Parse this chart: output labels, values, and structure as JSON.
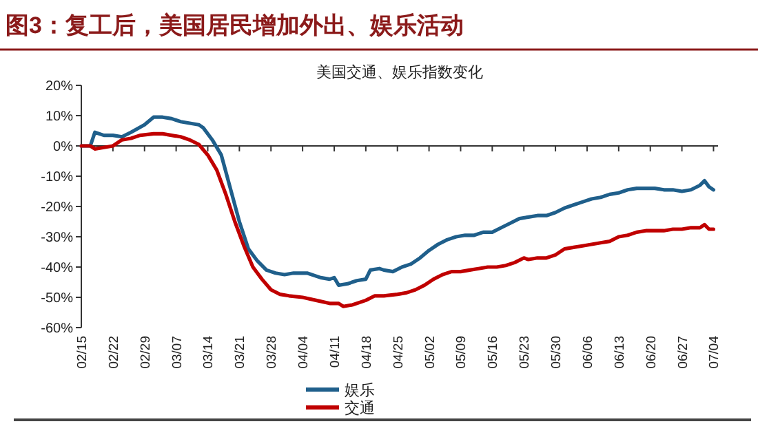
{
  "chart_data": {
    "type": "line",
    "title": "图3：复工后，美国居民增加外出、娱乐活动",
    "subtitle": "美国交通、娱乐指数变化",
    "xlim": [
      "--02-15",
      "--07-05"
    ],
    "xticks": [
      {
        "value": "--02-15",
        "label": "02/15"
      },
      {
        "value": "--02-22",
        "label": "02/22"
      },
      {
        "value": "--02-29",
        "label": "02/29"
      },
      {
        "value": "--03-07",
        "label": "03/07"
      },
      {
        "value": "--03-14",
        "label": "03/14"
      },
      {
        "value": "--03-21",
        "label": "03/21"
      },
      {
        "value": "--03-28",
        "label": "03/28"
      },
      {
        "value": "--04-04",
        "label": "04/04"
      },
      {
        "value": "--04-11",
        "label": "04/11"
      },
      {
        "value": "--04-18",
        "label": "04/18"
      },
      {
        "value": "--04-25",
        "label": "04/25"
      },
      {
        "value": "--05-02",
        "label": "05/02"
      },
      {
        "value": "--05-09",
        "label": "05/09"
      },
      {
        "value": "--05-16",
        "label": "05/16"
      },
      {
        "value": "--05-23",
        "label": "05/23"
      },
      {
        "value": "--05-30",
        "label": "05/30"
      },
      {
        "value": "--06-06",
        "label": "06/06"
      },
      {
        "value": "--06-13",
        "label": "06/13"
      },
      {
        "value": "--06-20",
        "label": "06/20"
      },
      {
        "value": "--06-27",
        "label": "06/27"
      },
      {
        "value": "--07-04",
        "label": "07/04"
      }
    ],
    "ylim": [
      -60,
      20
    ],
    "yticks": [
      {
        "value": -60,
        "label": "-60%"
      },
      {
        "value": -50,
        "label": "-50%"
      },
      {
        "value": -40,
        "label": "-40%"
      },
      {
        "value": -30,
        "label": "-30%"
      },
      {
        "value": -20,
        "label": "-20%"
      },
      {
        "value": -10,
        "label": "-10%"
      },
      {
        "value": 0,
        "label": "0%"
      },
      {
        "value": 10,
        "label": "10%"
      },
      {
        "value": 20,
        "label": "20%"
      }
    ],
    "legend": "bottom",
    "marker": "none",
    "line_style": "solid",
    "series": [
      {
        "name": "娱乐",
        "color": "#1f5f8b",
        "x": [
          "--02-15",
          "--02-17",
          "--02-18",
          "--02-20",
          "--02-22",
          "--02-24",
          "--02-26",
          "--02-29",
          "--03-02",
          "--03-04",
          "--03-06",
          "--03-08",
          "--03-10",
          "--03-12",
          "--03-13",
          "--03-15",
          "--03-17",
          "--03-19",
          "--03-21",
          "--03-23",
          "--03-25",
          "--03-27",
          "--03-29",
          "--03-31",
          "--04-02",
          "--04-05",
          "--04-08",
          "--04-10",
          "--04-11",
          "--04-12",
          "--04-14",
          "--04-16",
          "--04-18",
          "--04-19",
          "--04-21",
          "--04-22",
          "--04-24",
          "--04-26",
          "--04-28",
          "--04-30",
          "--05-02",
          "--05-04",
          "--05-06",
          "--05-08",
          "--05-10",
          "--05-12",
          "--05-14",
          "--05-16",
          "--05-18",
          "--05-20",
          "--05-22",
          "--05-24",
          "--05-26",
          "--05-28",
          "--05-30",
          "--06-01",
          "--06-03",
          "--06-05",
          "--06-07",
          "--06-09",
          "--06-11",
          "--06-13",
          "--06-15",
          "--06-17",
          "--06-19",
          "--06-21",
          "--06-23",
          "--06-25",
          "--06-27",
          "--06-29",
          "--07-01",
          "--07-02",
          "--07-03",
          "--07-04"
        ],
        "values": [
          0,
          0,
          4.5,
          3.5,
          3.5,
          3,
          4.5,
          7,
          9.5,
          9.5,
          9,
          8,
          7.5,
          7,
          6,
          2,
          -3,
          -14,
          -25,
          -34,
          -38,
          -41,
          -42,
          -42.5,
          -42,
          -42,
          -43.5,
          -44,
          -43.5,
          -46,
          -45.5,
          -44.5,
          -44,
          -41,
          -40.5,
          -41,
          -41.5,
          -40,
          -39,
          -37,
          -34.5,
          -32.5,
          -31,
          -30,
          -29.5,
          -29.5,
          -28.5,
          -28.5,
          -27,
          -25.5,
          -24,
          -23.5,
          -23,
          -23,
          -22,
          -20.5,
          -19.5,
          -18.5,
          -17.5,
          -17,
          -16,
          -15.5,
          -14.5,
          -14,
          -14,
          -14,
          -14.5,
          -14.5,
          -15,
          -14.5,
          -13,
          -11.5,
          -13.5,
          -14.5
        ]
      },
      {
        "name": "交通",
        "color": "#c00000",
        "x": [
          "--02-15",
          "--02-17",
          "--02-18",
          "--02-20",
          "--02-22",
          "--02-24",
          "--02-26",
          "--02-28",
          "--03-02",
          "--03-04",
          "--03-06",
          "--03-08",
          "--03-10",
          "--03-12",
          "--03-14",
          "--03-16",
          "--03-18",
          "--03-20",
          "--03-22",
          "--03-24",
          "--03-26",
          "--03-28",
          "--03-30",
          "--04-01",
          "--04-04",
          "--04-07",
          "--04-10",
          "--04-12",
          "--04-13",
          "--04-15",
          "--04-18",
          "--04-20",
          "--04-22",
          "--04-25",
          "--04-27",
          "--04-29",
          "--05-01",
          "--05-03",
          "--05-05",
          "--05-07",
          "--05-09",
          "--05-11",
          "--05-13",
          "--05-15",
          "--05-17",
          "--05-19",
          "--05-21",
          "--05-23",
          "--05-24",
          "--05-26",
          "--05-28",
          "--05-30",
          "--06-01",
          "--06-03",
          "--06-05",
          "--06-07",
          "--06-09",
          "--06-11",
          "--06-13",
          "--06-15",
          "--06-17",
          "--06-19",
          "--06-21",
          "--06-23",
          "--06-25",
          "--06-27",
          "--06-29",
          "--07-01",
          "--07-02",
          "--07-03",
          "--07-04"
        ],
        "values": [
          0,
          0,
          -1,
          -0.5,
          0,
          2,
          2.5,
          3.5,
          4,
          4,
          3.5,
          3,
          2,
          0.5,
          -3,
          -8,
          -16,
          -25,
          -33,
          -40,
          -44,
          -47.5,
          -49,
          -49.5,
          -50,
          -51,
          -52,
          -52,
          -53,
          -52.5,
          -51,
          -49.5,
          -49.5,
          -49,
          -48.5,
          -47.5,
          -46,
          -44,
          -42.5,
          -41.5,
          -41.5,
          -41,
          -40.5,
          -40,
          -40,
          -39.5,
          -38.5,
          -37,
          -37.5,
          -37,
          -37,
          -36,
          -34,
          -33.5,
          -33,
          -32.5,
          -32,
          -31.5,
          -30,
          -29.5,
          -28.5,
          -28,
          -28,
          -28,
          -27.5,
          -27.5,
          -27,
          -27,
          -26,
          -27.5,
          -27.5
        ]
      }
    ]
  }
}
